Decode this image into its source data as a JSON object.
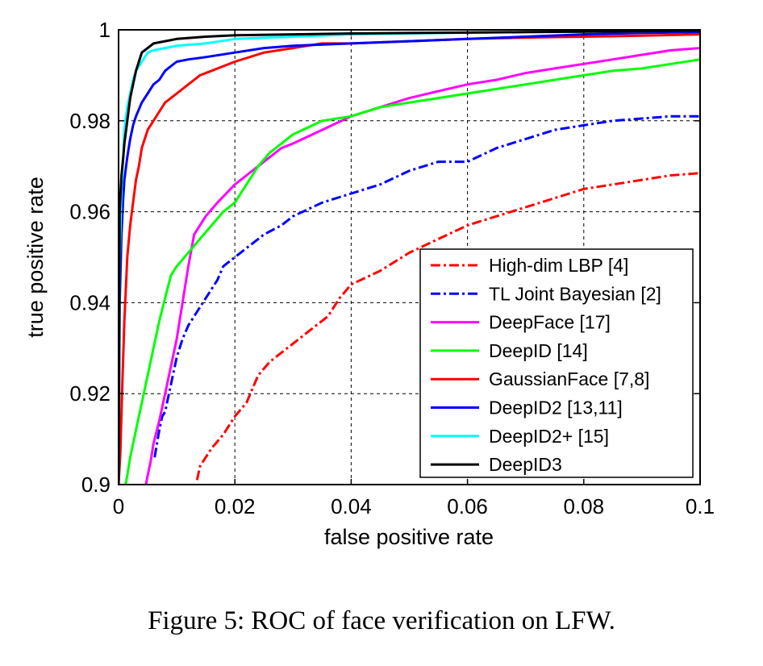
{
  "caption": "Figure 5: ROC of face verification on LFW.",
  "chart_data": {
    "type": "line",
    "title": "",
    "xlabel": "false positive rate",
    "ylabel": "true positive rate",
    "xlim": [
      0,
      0.1
    ],
    "ylim": [
      0.9,
      1
    ],
    "xticks": [
      0,
      0.02,
      0.04,
      0.06,
      0.08,
      0.1
    ],
    "xtick_labels": [
      "0",
      "0.02",
      "0.04",
      "0.06",
      "0.08",
      "0.1"
    ],
    "yticks": [
      0.9,
      0.92,
      0.94,
      0.96,
      0.98,
      1
    ],
    "ytick_labels": [
      "0.9",
      "0.92",
      "0.94",
      "0.96",
      "0.98",
      "1"
    ],
    "grid": true,
    "legend_position": "bottom-right",
    "series": [
      {
        "name": "High-dim LBP [4]",
        "color": "#ff0000",
        "dash": "dashdot",
        "x": [
          0.0135,
          0.014,
          0.015,
          0.016,
          0.018,
          0.02,
          0.022,
          0.024,
          0.026,
          0.028,
          0.03,
          0.033,
          0.036,
          0.038,
          0.04,
          0.045,
          0.05,
          0.055,
          0.06,
          0.065,
          0.07,
          0.075,
          0.08,
          0.085,
          0.09,
          0.095,
          0.1
        ],
        "y": [
          0.901,
          0.904,
          0.906,
          0.908,
          0.911,
          0.915,
          0.918,
          0.924,
          0.927,
          0.929,
          0.931,
          0.934,
          0.937,
          0.941,
          0.944,
          0.947,
          0.951,
          0.954,
          0.957,
          0.959,
          0.961,
          0.963,
          0.965,
          0.966,
          0.967,
          0.968,
          0.9685
        ]
      },
      {
        "name": "TL Joint Bayesian [2]",
        "color": "#0000ff",
        "dash": "dashdot",
        "x": [
          0.0062,
          0.0066,
          0.007,
          0.0075,
          0.008,
          0.009,
          0.01,
          0.011,
          0.012,
          0.013,
          0.015,
          0.017,
          0.018,
          0.02,
          0.022,
          0.025,
          0.028,
          0.03,
          0.035,
          0.04,
          0.045,
          0.05,
          0.055,
          0.06,
          0.065,
          0.07,
          0.075,
          0.08,
          0.085,
          0.09,
          0.095,
          0.1
        ],
        "y": [
          0.906,
          0.909,
          0.912,
          0.915,
          0.916,
          0.922,
          0.928,
          0.932,
          0.935,
          0.937,
          0.941,
          0.945,
          0.948,
          0.95,
          0.952,
          0.955,
          0.957,
          0.959,
          0.962,
          0.964,
          0.966,
          0.969,
          0.971,
          0.971,
          0.974,
          0.976,
          0.978,
          0.979,
          0.98,
          0.9805,
          0.981,
          0.981
        ]
      },
      {
        "name": "DeepFace [17]",
        "color": "#ff00ff",
        "dash": "solid",
        "x": [
          0.0047,
          0.005,
          0.0055,
          0.006,
          0.007,
          0.008,
          0.009,
          0.01,
          0.011,
          0.012,
          0.013,
          0.015,
          0.017,
          0.02,
          0.022,
          0.024,
          0.026,
          0.028,
          0.03,
          0.035,
          0.04,
          0.045,
          0.05,
          0.055,
          0.06,
          0.065,
          0.07,
          0.075,
          0.08,
          0.085,
          0.09,
          0.095,
          0.1
        ],
        "y": [
          0.9,
          0.902,
          0.905,
          0.909,
          0.914,
          0.92,
          0.926,
          0.932,
          0.94,
          0.948,
          0.955,
          0.959,
          0.962,
          0.966,
          0.968,
          0.97,
          0.972,
          0.974,
          0.975,
          0.978,
          0.981,
          0.983,
          0.985,
          0.9865,
          0.988,
          0.989,
          0.9905,
          0.9915,
          0.9925,
          0.9935,
          0.9945,
          0.9955,
          0.996
        ]
      },
      {
        "name": "DeepID [14]",
        "color": "#00ff00",
        "dash": "solid",
        "x": [
          0.0012,
          0.0015,
          0.002,
          0.003,
          0.004,
          0.005,
          0.006,
          0.007,
          0.008,
          0.009,
          0.01,
          0.012,
          0.014,
          0.016,
          0.018,
          0.02,
          0.022,
          0.024,
          0.026,
          0.03,
          0.035,
          0.04,
          0.045,
          0.05,
          0.055,
          0.06,
          0.065,
          0.07,
          0.075,
          0.08,
          0.085,
          0.09,
          0.095,
          0.1
        ],
        "y": [
          0.9,
          0.902,
          0.906,
          0.912,
          0.918,
          0.924,
          0.93,
          0.936,
          0.941,
          0.946,
          0.948,
          0.951,
          0.954,
          0.957,
          0.96,
          0.962,
          0.966,
          0.97,
          0.973,
          0.977,
          0.98,
          0.981,
          0.983,
          0.984,
          0.985,
          0.986,
          0.987,
          0.988,
          0.989,
          0.99,
          0.991,
          0.9915,
          0.9925,
          0.9935
        ]
      },
      {
        "name": "GaussianFace [7,8]",
        "color": "#ff0000",
        "dash": "solid",
        "x": [
          0.0,
          0.0003,
          0.0006,
          0.001,
          0.0015,
          0.002,
          0.0025,
          0.003,
          0.0035,
          0.004,
          0.005,
          0.006,
          0.007,
          0.008,
          0.009,
          0.01,
          0.012,
          0.014,
          0.016,
          0.018,
          0.02,
          0.025,
          0.03,
          0.035,
          0.04,
          0.05,
          0.06,
          0.07,
          0.08,
          0.09,
          0.1
        ],
        "y": [
          0.9,
          0.907,
          0.92,
          0.936,
          0.95,
          0.957,
          0.962,
          0.967,
          0.97,
          0.974,
          0.978,
          0.98,
          0.982,
          0.984,
          0.985,
          0.986,
          0.988,
          0.99,
          0.991,
          0.992,
          0.993,
          0.995,
          0.996,
          0.997,
          0.997,
          0.9975,
          0.998,
          0.9983,
          0.9985,
          0.9987,
          0.999
        ]
      },
      {
        "name": "DeepID2 [13,11]",
        "color": "#0000ff",
        "dash": "solid",
        "x": [
          0.0,
          0.0002,
          0.0005,
          0.0008,
          0.001,
          0.0015,
          0.002,
          0.0025,
          0.003,
          0.004,
          0.005,
          0.006,
          0.007,
          0.008,
          0.009,
          0.01,
          0.012,
          0.015,
          0.02,
          0.025,
          0.03,
          0.04,
          0.05,
          0.06,
          0.07,
          0.08,
          0.09,
          0.1
        ],
        "y": [
          0.9,
          0.94,
          0.955,
          0.963,
          0.967,
          0.972,
          0.976,
          0.979,
          0.981,
          0.984,
          0.986,
          0.988,
          0.989,
          0.991,
          0.992,
          0.993,
          0.9935,
          0.994,
          0.995,
          0.996,
          0.9965,
          0.997,
          0.9975,
          0.998,
          0.9985,
          0.999,
          0.9993,
          0.9995
        ]
      },
      {
        "name": "DeepID2+ [15]",
        "color": "#00ffff",
        "dash": "solid",
        "x": [
          0.0,
          0.0002,
          0.0005,
          0.0008,
          0.001,
          0.0015,
          0.002,
          0.0025,
          0.003,
          0.004,
          0.005,
          0.006,
          0.008,
          0.01,
          0.015,
          0.02,
          0.03,
          0.04,
          0.05,
          0.06,
          0.08,
          0.1
        ],
        "y": [
          0.9,
          0.95,
          0.965,
          0.972,
          0.978,
          0.983,
          0.986,
          0.989,
          0.991,
          0.993,
          0.995,
          0.9955,
          0.996,
          0.9965,
          0.997,
          0.998,
          0.9985,
          0.999,
          0.9992,
          0.9994,
          0.9996,
          0.9998
        ]
      },
      {
        "name": "DeepID3",
        "color": "#000000",
        "dash": "solid",
        "x": [
          0.0,
          0.0002,
          0.0005,
          0.0008,
          0.001,
          0.0015,
          0.002,
          0.0025,
          0.003,
          0.0035,
          0.004,
          0.005,
          0.006,
          0.008,
          0.01,
          0.015,
          0.02,
          0.03,
          0.04,
          0.05,
          0.06,
          0.07,
          0.08,
          0.09,
          0.1
        ],
        "y": [
          0.9,
          0.96,
          0.968,
          0.972,
          0.975,
          0.98,
          0.985,
          0.988,
          0.991,
          0.993,
          0.995,
          0.996,
          0.997,
          0.9975,
          0.998,
          0.9985,
          0.9988,
          0.999,
          0.9992,
          0.9993,
          0.9994,
          0.9995,
          0.9996,
          0.9997,
          0.9998
        ]
      }
    ]
  }
}
